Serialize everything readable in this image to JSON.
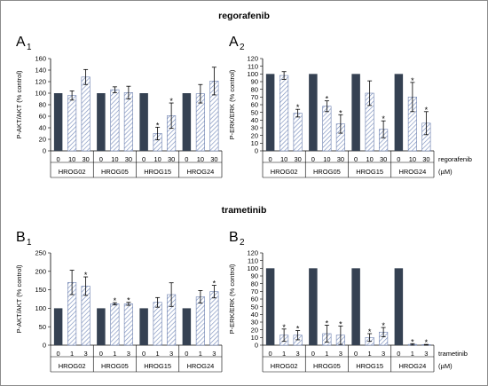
{
  "section_titles": [
    "regorafenib",
    "trametinib"
  ],
  "panel_letters": [
    "A",
    "A",
    "B",
    "B"
  ],
  "panel_subscripts": [
    "1",
    "2",
    "1",
    "2"
  ],
  "colors": {
    "control": "#354152",
    "treated_hatch": "#7a8fbd",
    "axis": "#000000"
  },
  "chart_data": [
    {
      "type": "bar",
      "panel": "A1",
      "ylabel": "P-AKT/AKT (% control)",
      "ylim": [
        0,
        160
      ],
      "yticks": [
        0,
        20,
        40,
        60,
        80,
        100,
        120,
        140,
        160
      ],
      "groups": [
        "HROG02",
        "HROG05",
        "HROG15",
        "HROG24"
      ],
      "conditions": [
        "0",
        "10",
        "30"
      ],
      "values": [
        [
          100,
          96,
          128
        ],
        [
          100,
          106,
          101
        ],
        [
          100,
          30,
          61
        ],
        [
          100,
          99,
          121
        ]
      ],
      "errors": [
        [
          0,
          8,
          13
        ],
        [
          0,
          5,
          11
        ],
        [
          0,
          11,
          22
        ],
        [
          0,
          16,
          24
        ]
      ],
      "significant": [
        [
          false,
          false,
          false
        ],
        [
          false,
          false,
          false
        ],
        [
          false,
          true,
          true
        ],
        [
          false,
          false,
          false
        ]
      ],
      "condition_label": "",
      "unit_label": ""
    },
    {
      "type": "bar",
      "panel": "A2",
      "ylabel": "P-ERK/ERK (% control)",
      "ylim": [
        0,
        120
      ],
      "yticks": [
        0,
        10,
        20,
        30,
        40,
        50,
        60,
        70,
        80,
        90,
        100,
        110,
        120
      ],
      "groups": [
        "HROG02",
        "HROG05",
        "HROG15",
        "HROG24"
      ],
      "conditions": [
        "0",
        "10",
        "30"
      ],
      "values": [
        [
          100,
          98,
          49
        ],
        [
          100,
          58,
          35
        ],
        [
          100,
          75,
          28
        ],
        [
          100,
          70,
          36
        ]
      ],
      "errors": [
        [
          0,
          5,
          5
        ],
        [
          0,
          7,
          12
        ],
        [
          0,
          16,
          11
        ],
        [
          0,
          19,
          15
        ]
      ],
      "significant": [
        [
          false,
          false,
          true
        ],
        [
          false,
          true,
          true
        ],
        [
          false,
          false,
          true
        ],
        [
          false,
          true,
          true
        ]
      ],
      "condition_label": "regorafenib",
      "unit_label": "(µM)"
    },
    {
      "type": "bar",
      "panel": "B1",
      "ylabel": "P-AKT/AKT (% control)",
      "ylim": [
        0,
        250
      ],
      "yticks": [
        0,
        50,
        100,
        150,
        200,
        250
      ],
      "groups": [
        "HROG02",
        "HROG05",
        "HROG15",
        "HROG24"
      ],
      "conditions": [
        "0",
        "1",
        "3"
      ],
      "values": [
        [
          100,
          170,
          160
        ],
        [
          100,
          112,
          112
        ],
        [
          100,
          116,
          137
        ],
        [
          100,
          131,
          145
        ]
      ],
      "errors": [
        [
          0,
          33,
          25
        ],
        [
          0,
          3,
          4
        ],
        [
          0,
          13,
          32
        ],
        [
          0,
          17,
          17
        ]
      ],
      "significant": [
        [
          false,
          false,
          true
        ],
        [
          false,
          true,
          true
        ],
        [
          false,
          false,
          false
        ],
        [
          false,
          false,
          true
        ]
      ],
      "condition_label": "",
      "unit_label": ""
    },
    {
      "type": "bar",
      "panel": "B2",
      "ylabel": "P-ERK/ERK (% control)",
      "ylim": [
        0,
        120
      ],
      "yticks": [
        0,
        10,
        20,
        30,
        40,
        50,
        60,
        70,
        80,
        90,
        100,
        110,
        120
      ],
      "groups": [
        "HROG02",
        "HROG05",
        "HROG15",
        "HROG24"
      ],
      "conditions": [
        "0",
        "1",
        "3"
      ],
      "values": [
        [
          100,
          13,
          13
        ],
        [
          100,
          15,
          13
        ],
        [
          100,
          10,
          17
        ],
        [
          100,
          1,
          0.5
        ]
      ],
      "errors": [
        [
          0,
          8,
          6
        ],
        [
          0,
          11,
          12
        ],
        [
          0,
          5,
          6
        ],
        [
          0,
          1,
          0.5
        ]
      ],
      "significant": [
        [
          false,
          true,
          true
        ],
        [
          false,
          true,
          true
        ],
        [
          false,
          true,
          true
        ],
        [
          false,
          true,
          true
        ]
      ],
      "condition_label": "trametinib",
      "unit_label": "(µM)"
    }
  ]
}
